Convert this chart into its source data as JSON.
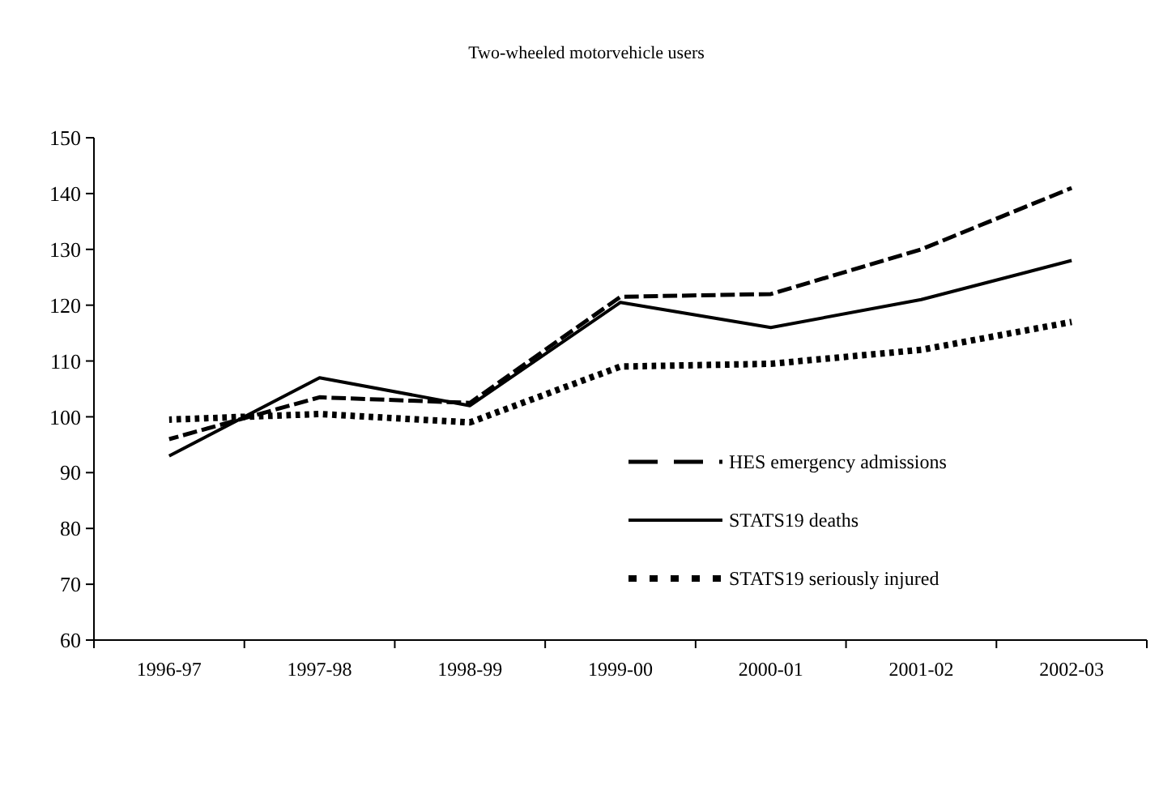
{
  "chart_data": {
    "type": "line",
    "title": "Two-wheeled motorvehicle users",
    "categories": [
      "1996-97",
      "1997-98",
      "1998-99",
      "1999-00",
      "2000-01",
      "2001-02",
      "2002-03"
    ],
    "series": [
      {
        "name": "HES emergency admissions",
        "color": "#000000",
        "line_style": "dashed",
        "values": [
          96,
          103.5,
          102.5,
          121.5,
          122,
          130,
          141
        ]
      },
      {
        "name": "STATS19 deaths",
        "color": "#000000",
        "line_style": "solid",
        "values": [
          93,
          107,
          102,
          120.5,
          116,
          121,
          128
        ]
      },
      {
        "name": "STATS19 seriously injured",
        "color": "#000000",
        "line_style": "dotted",
        "values": [
          99.5,
          100.5,
          99,
          109,
          109.5,
          112,
          117
        ]
      }
    ],
    "ylim": [
      60,
      150
    ],
    "yticks": [
      60,
      70,
      80,
      90,
      100,
      110,
      120,
      130,
      140,
      150
    ],
    "grid": false,
    "legend": "bottom right"
  }
}
